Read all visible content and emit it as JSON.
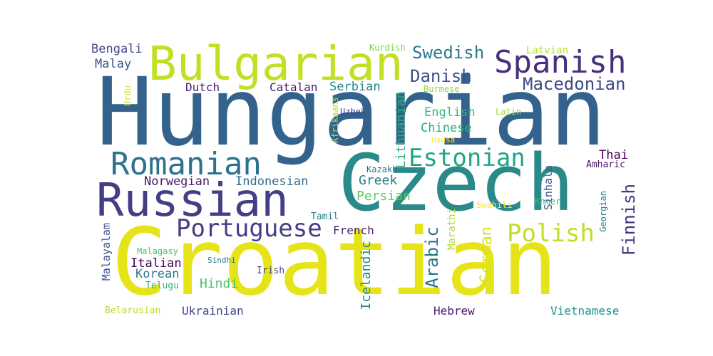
{
  "words": [
    {
      "text": "Hungarian",
      "color": "#33638d"
    },
    {
      "text": "Croatian",
      "color": "#e6e418"
    },
    {
      "text": "Czech",
      "color": "#2a8a8a"
    },
    {
      "text": "Bulgarian",
      "color": "#c2df23"
    },
    {
      "text": "Russian",
      "color": "#433e85"
    },
    {
      "text": "Spanish",
      "color": "#472f7d"
    },
    {
      "text": "Romanian",
      "color": "#2c728e"
    },
    {
      "text": "Portuguese",
      "color": "#433e85"
    },
    {
      "text": "Estonian",
      "color": "#21a585"
    },
    {
      "text": "Polish",
      "color": "#bddf26"
    },
    {
      "text": "Danish",
      "color": "#3b528b"
    },
    {
      "text": "Swedish",
      "color": "#2a788e"
    },
    {
      "text": "Macedonian",
      "color": "#3e4989"
    },
    {
      "text": "Finnish",
      "color": "#453781"
    },
    {
      "text": "Arabic",
      "color": "#2c728e"
    },
    {
      "text": "German",
      "color": "#d8e219"
    },
    {
      "text": "Icelandic",
      "color": "#23898e"
    },
    {
      "text": "Lithuanian",
      "color": "#2db27d"
    },
    {
      "text": "Greek",
      "color": "#287d8e"
    },
    {
      "text": "Persian",
      "color": "#5ec962"
    },
    {
      "text": "Hindi",
      "color": "#4ac16d"
    },
    {
      "text": "Bengali",
      "color": "#3e4a89"
    },
    {
      "text": "Malay",
      "color": "#3b528b"
    },
    {
      "text": "Dutch",
      "color": "#481f70"
    },
    {
      "text": "Catalan",
      "color": "#481a6c"
    },
    {
      "text": "Serbian",
      "color": "#25858e"
    },
    {
      "text": "English",
      "color": "#35b779"
    },
    {
      "text": "Chinese",
      "color": "#29af7f"
    },
    {
      "text": "Thai",
      "color": "#440154"
    },
    {
      "text": "Norwegian",
      "color": "#48186a"
    },
    {
      "text": "Indonesian",
      "color": "#2f6b8e"
    },
    {
      "text": "French",
      "color": "#482173"
    },
    {
      "text": "Italian",
      "color": "#440154"
    },
    {
      "text": "Korean",
      "color": "#2a788e"
    },
    {
      "text": "Ukrainian",
      "color": "#3f4788"
    },
    {
      "text": "Hebrew",
      "color": "#481b6d"
    },
    {
      "text": "Vietnamese",
      "color": "#20928c"
    },
    {
      "text": "Malayalam",
      "color": "#3b528b"
    },
    {
      "text": "Sinhala",
      "color": "#39568c"
    },
    {
      "text": "Marathi",
      "color": "#b2dd2c"
    },
    {
      "text": "Latvian",
      "color": "#b8de29"
    },
    {
      "text": "Kurdish",
      "color": "#7ad151"
    },
    {
      "text": "Burmese",
      "color": "#95d840"
    },
    {
      "text": "Latin",
      "color": "#a0da39"
    },
    {
      "text": "Hausa",
      "color": "#fde725"
    },
    {
      "text": "Uzbek",
      "color": "#404688"
    },
    {
      "text": "Kazakh",
      "color": "#2d708e"
    },
    {
      "text": "Amharic",
      "color": "#481467"
    },
    {
      "text": "Swahili",
      "color": "#fde725"
    },
    {
      "text": "Khmer",
      "color": "#3fbc73"
    },
    {
      "text": "Georgian",
      "color": "#26818e"
    },
    {
      "text": "Tamil",
      "color": "#277f8e"
    },
    {
      "text": "Malagasy",
      "color": "#4ac16d"
    },
    {
      "text": "Sindhi",
      "color": "#2a768e"
    },
    {
      "text": "Irish",
      "color": "#414487"
    },
    {
      "text": "Telugu",
      "color": "#32b67a"
    },
    {
      "text": "Belarusian",
      "color": "#b5de2b"
    },
    {
      "text": "Urdu",
      "color": "#dfe318"
    },
    {
      "text": "Afrikaans",
      "color": "#b5de2b"
    }
  ]
}
